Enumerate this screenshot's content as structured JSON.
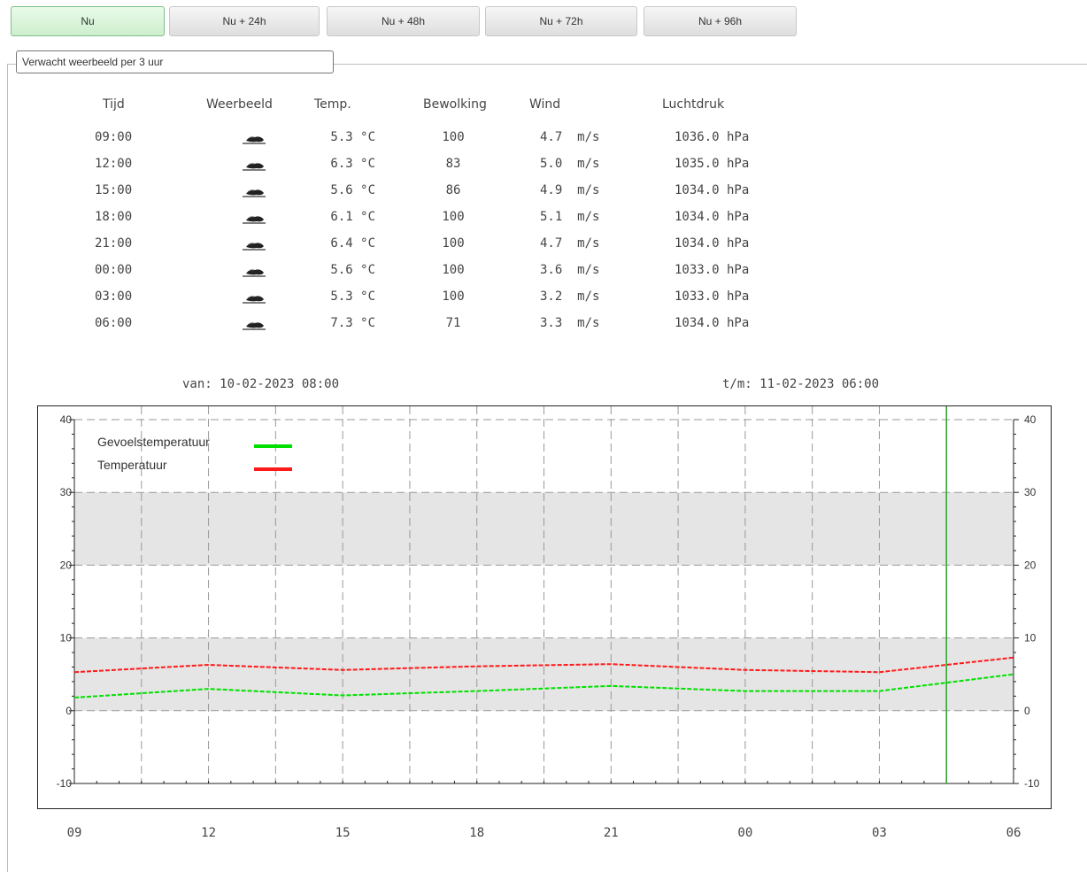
{
  "tabs": [
    {
      "label": "Nu",
      "active": true
    },
    {
      "label": "Nu + 24h",
      "active": false
    },
    {
      "label": "Nu + 48h",
      "active": false
    },
    {
      "label": "Nu + 72h",
      "active": false
    },
    {
      "label": "Nu + 96h",
      "active": false
    }
  ],
  "section_title": "Verwacht weerbeeld per 3 uur",
  "table": {
    "headers": [
      "Tijd",
      "Weerbeeld",
      "Temp.",
      "Bewolking",
      "Wind",
      "Luchtdruk"
    ],
    "rows": [
      {
        "time": "09:00",
        "icon": "cloud-icon",
        "temp": "5.3 °C",
        "clouds": "100",
        "wind": "4.7  m/s",
        "pressure": "1036.0 hPa"
      },
      {
        "time": "12:00",
        "icon": "cloud-icon",
        "temp": "6.3 °C",
        "clouds": "83",
        "wind": "5.0  m/s",
        "pressure": "1035.0 hPa"
      },
      {
        "time": "15:00",
        "icon": "cloud-icon",
        "temp": "5.6 °C",
        "clouds": "86",
        "wind": "4.9  m/s",
        "pressure": "1034.0 hPa"
      },
      {
        "time": "18:00",
        "icon": "cloud-icon",
        "temp": "6.1 °C",
        "clouds": "100",
        "wind": "5.1  m/s",
        "pressure": "1034.0 hPa"
      },
      {
        "time": "21:00",
        "icon": "cloud-icon",
        "temp": "6.4 °C",
        "clouds": "100",
        "wind": "4.7  m/s",
        "pressure": "1034.0 hPa"
      },
      {
        "time": "00:00",
        "icon": "cloud-icon",
        "temp": "5.6 °C",
        "clouds": "100",
        "wind": "3.6  m/s",
        "pressure": "1033.0 hPa"
      },
      {
        "time": "03:00",
        "icon": "cloud-icon",
        "temp": "5.3 °C",
        "clouds": "100",
        "wind": "3.2  m/s",
        "pressure": "1033.0 hPa"
      },
      {
        "time": "06:00",
        "icon": "cloud-icon",
        "temp": "7.3 °C",
        "clouds": "71",
        "wind": "3.3  m/s",
        "pressure": "1034.0 hPa"
      }
    ]
  },
  "range": {
    "from": "van: 10-02-2023 08:00",
    "to": "t/m: 11-02-2023 06:00"
  },
  "chart_data": {
    "type": "line",
    "x_ticks": [
      "09",
      "12",
      "15",
      "18",
      "21",
      "00",
      "03",
      "06"
    ],
    "ylim": [
      -10,
      40
    ],
    "y_ticks": [
      -10,
      0,
      10,
      20,
      30,
      40
    ],
    "grid": true,
    "shaded_bands": [
      [
        0,
        10
      ],
      [
        20,
        30
      ]
    ],
    "now_marker_hour": 19.5,
    "legend_position": "top-left",
    "series": [
      {
        "name": "Gevoelstemperatuur",
        "color": "#00e000",
        "x_hours": [
          0,
          3,
          6,
          9,
          12,
          15,
          18,
          21
        ],
        "values": [
          1.8,
          3.0,
          2.1,
          2.7,
          3.4,
          2.7,
          2.7,
          5.0
        ]
      },
      {
        "name": "Temperatuur",
        "color": "#ff1a1a",
        "x_hours": [
          0,
          3,
          6,
          9,
          12,
          15,
          18,
          21
        ],
        "values": [
          5.3,
          6.3,
          5.6,
          6.1,
          6.4,
          5.6,
          5.3,
          7.3
        ]
      }
    ]
  }
}
